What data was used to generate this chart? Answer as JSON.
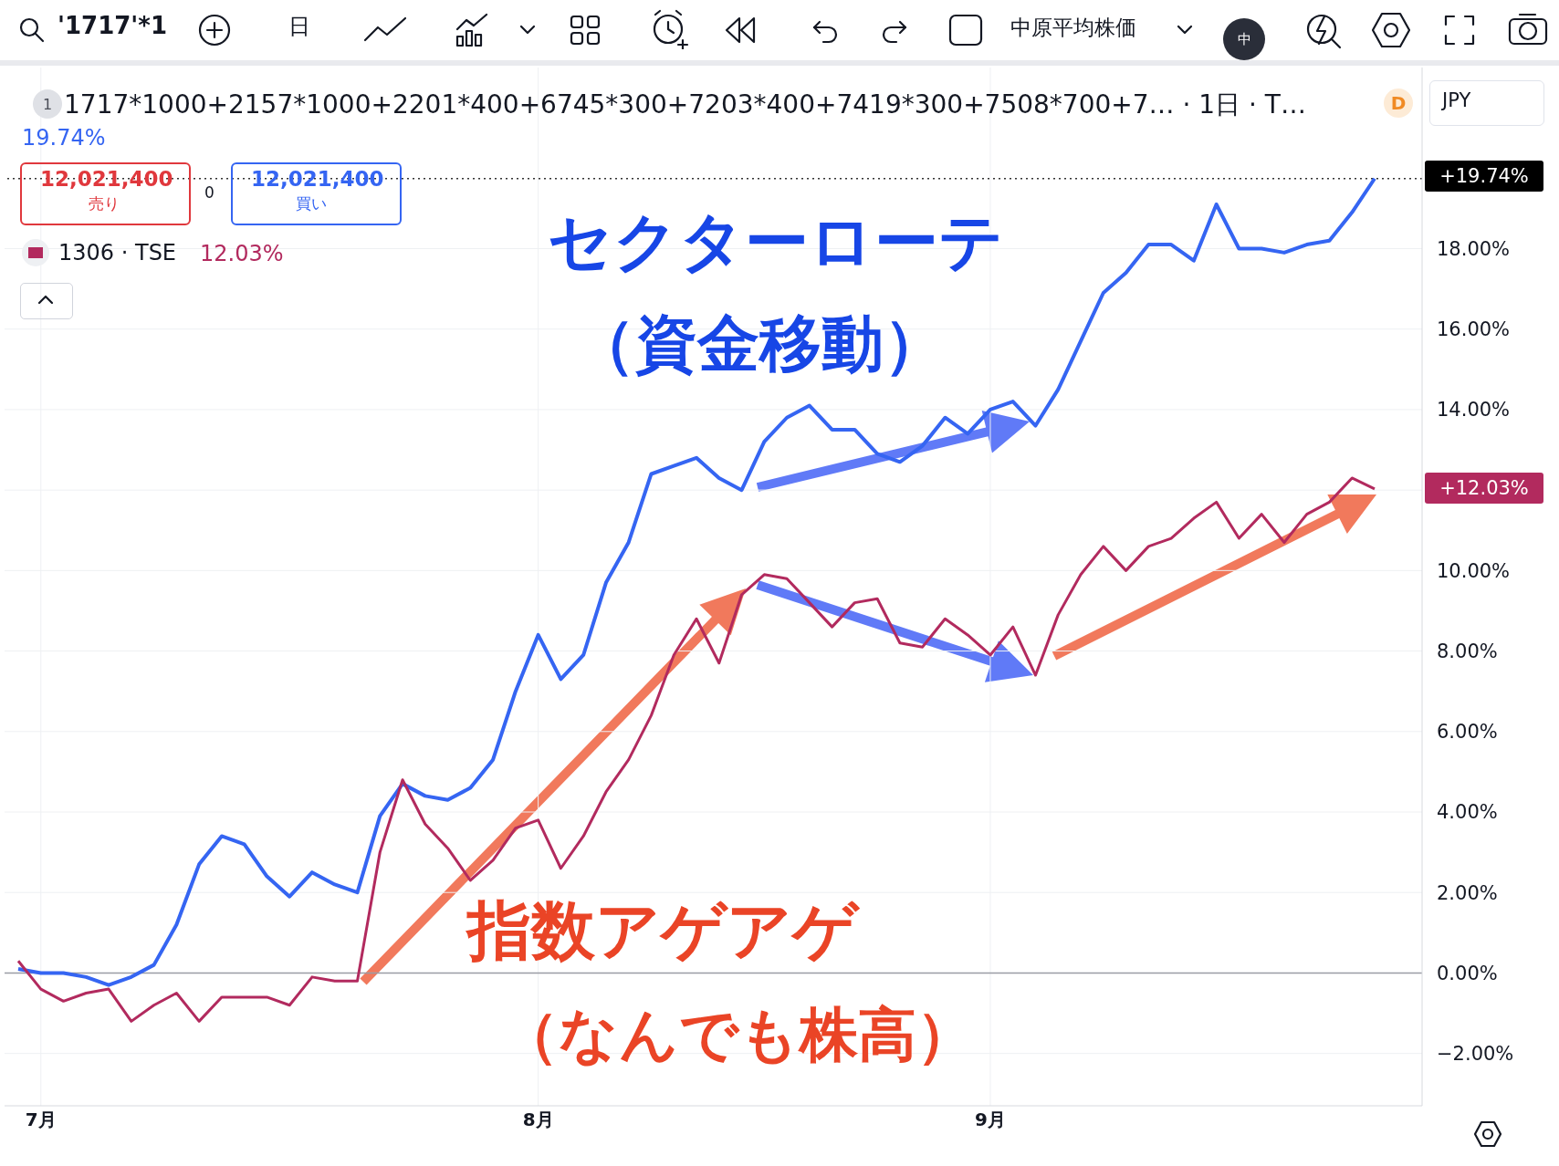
{
  "chart_data": {
    "type": "line",
    "title": "1717*1000+2157*1000+2201*400+6745*300+7203*400+7419*300+7508*700+7… · 1日 · T…",
    "categories": [
      null,
      "7月",
      null,
      null,
      null,
      null,
      null,
      null,
      null,
      null,
      null,
      null,
      null,
      null,
      null,
      null,
      null,
      null,
      null,
      null,
      null,
      null,
      null,
      "8月",
      null,
      null,
      null,
      null,
      null,
      null,
      null,
      null,
      null,
      null,
      null,
      null,
      null,
      null,
      null,
      null,
      null,
      null,
      null,
      "9月",
      null,
      null,
      null,
      null,
      null,
      null,
      null,
      null,
      null,
      null,
      null,
      null,
      null,
      null,
      null,
      null,
      null
    ],
    "series": [
      {
        "color": "#3565f2",
        "values": [
          0.1,
          0,
          0,
          -0.1,
          -0.3,
          -0.1,
          0.2,
          1.2,
          2.7,
          3.4,
          3.2,
          2.4,
          1.9,
          2.5,
          2.2,
          2.0,
          3.9,
          4.7,
          4.4,
          4.3,
          4.6,
          5.3,
          7.0,
          8.4,
          7.3,
          7.9,
          9.7,
          10.7,
          12.4,
          12.6,
          12.8,
          12.3,
          12.0,
          13.2,
          13.8,
          14.1,
          13.5,
          13.5,
          12.9,
          12.7,
          13.1,
          13.8,
          13.4,
          14.0,
          14.2,
          13.6,
          14.5,
          15.7,
          16.9,
          17.4,
          18.1,
          18.1,
          17.7,
          19.1,
          18.0,
          18.0,
          17.9,
          18.1,
          18.2,
          18.9,
          19.74
        ]
      },
      {
        "name": "1306 · TSE",
        "color": "#b22a5e",
        "values": [
          0.3,
          -0.4,
          -0.7,
          -0.5,
          -0.4,
          -1.2,
          -0.8,
          -0.5,
          -1.2,
          -0.6,
          -0.6,
          -0.6,
          -0.8,
          -0.1,
          -0.2,
          -0.2,
          3.0,
          4.8,
          3.7,
          3.1,
          2.3,
          2.8,
          3.6,
          3.8,
          2.6,
          3.4,
          4.5,
          5.3,
          6.4,
          7.9,
          8.8,
          7.7,
          9.4,
          9.9,
          9.8,
          9.2,
          8.6,
          9.2,
          9.3,
          8.2,
          8.1,
          8.8,
          8.4,
          7.9,
          8.6,
          7.4,
          8.9,
          9.9,
          10.6,
          10.0,
          10.6,
          10.8,
          11.3,
          11.7,
          10.8,
          11.4,
          10.7,
          11.4,
          11.7,
          12.3,
          12.03
        ]
      }
    ],
    "ylim": [
      -3.3,
      22.5
    ],
    "yticks": [
      {
        "value": -2,
        "label": "−2.00%"
      },
      {
        "value": 0,
        "label": "0.00%"
      },
      {
        "value": 2,
        "label": "2.00%"
      },
      {
        "value": 4,
        "label": "4.00%"
      },
      {
        "value": 6,
        "label": "6.00%"
      },
      {
        "value": 8,
        "label": "8.00%"
      },
      {
        "value": 10,
        "label": "10.00%"
      },
      {
        "value": 12,
        "label": null
      },
      {
        "value": 14,
        "label": "14.00%"
      },
      {
        "value": 16,
        "label": "16.00%"
      },
      {
        "value": 18,
        "label": "18.00%"
      }
    ],
    "grid": true,
    "legend": "top left",
    "marker": "none",
    "line_style": "solid",
    "ref_lines": [
      {
        "axis": "y",
        "value": 19.74,
        "line_style": "dotted",
        "color": "#333333"
      },
      {
        "axis": "y",
        "value": 0,
        "color": "#9a9ca4"
      }
    ],
    "annotations": [
      "'1717'*1",
      "日",
      "中原平均株価",
      "中",
      "1",
      "D",
      "JPY",
      "19.74%",
      "12,021,400",
      "売り",
      "0",
      "12,021,400",
      "買い",
      "12.03%",
      "セクターローテ",
      "（資金移動）",
      "指数アゲアゲ",
      "（なんでも株高）",
      "+19.74%",
      "+12.03%"
    ]
  }
}
